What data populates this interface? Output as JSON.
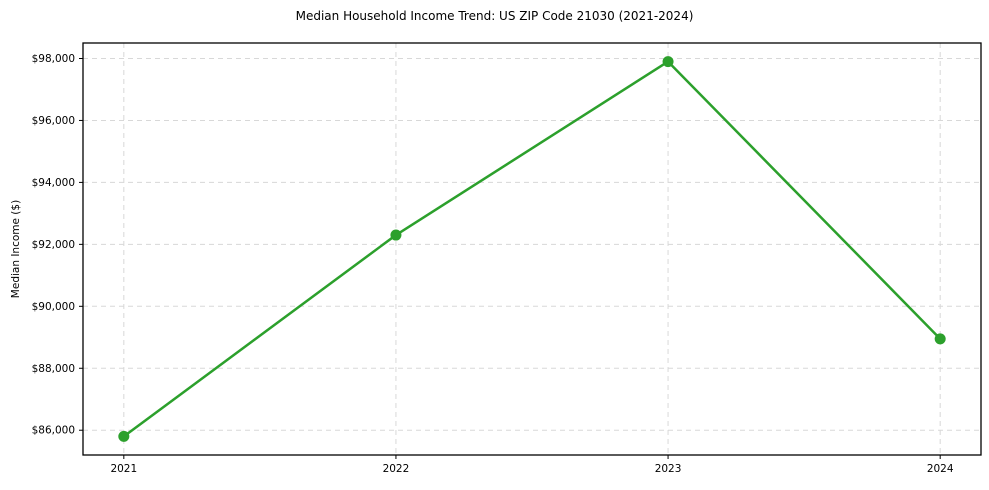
{
  "chart_data": {
    "type": "line",
    "title": "Median Household Income Trend: US ZIP Code 21030 (2021-2024)",
    "ylabel": "Median Income ($)",
    "xlabel": "",
    "x": [
      2021,
      2022,
      2023,
      2024
    ],
    "values": [
      85800,
      92300,
      97900,
      88950
    ],
    "xticks": [
      2021,
      2022,
      2023,
      2024
    ],
    "xtick_labels": [
      "2021",
      "2022",
      "2023",
      "2024"
    ],
    "yticks": [
      86000,
      88000,
      90000,
      92000,
      94000,
      96000,
      98000
    ],
    "ytick_labels": [
      "$86,000",
      "$88,000",
      "$90,000",
      "$92,000",
      "$94,000",
      "$96,000",
      "$98,000"
    ],
    "xlim": [
      2020.85,
      2024.15
    ],
    "ylim": [
      85200,
      98500
    ],
    "grid": true,
    "grid_style": "dashed",
    "legend": "none",
    "line_color": "#2ca02c",
    "marker": "circle",
    "grid_color": "#d8d8d8",
    "axis_color": "#000000",
    "background_color": "#ffffff"
  }
}
